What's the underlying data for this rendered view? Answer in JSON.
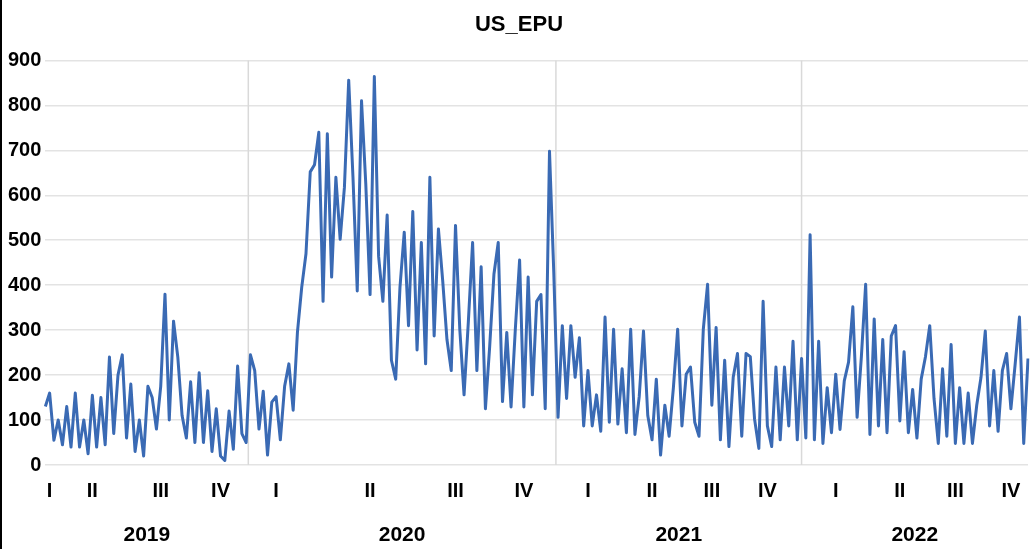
{
  "chart_data": {
    "type": "line",
    "title": "US_EPU",
    "categories": [
      null,
      "I",
      null,
      null,
      null,
      null,
      null,
      null,
      null,
      null,
      null,
      "II",
      null,
      null,
      null,
      null,
      null,
      null,
      null,
      null,
      null,
      null,
      null,
      null,
      null,
      null,
      null,
      "III",
      null,
      null,
      null,
      null,
      null,
      null,
      null,
      null,
      null,
      null,
      null,
      null,
      null,
      "IV",
      null,
      null,
      null,
      null,
      null,
      null,
      null,
      null,
      null,
      null,
      null,
      null,
      "I",
      null,
      null,
      null,
      null,
      null,
      null,
      null,
      null,
      null,
      null,
      null,
      null,
      null,
      null,
      null,
      null,
      null,
      null,
      null,
      null,
      null,
      "II",
      null,
      null,
      null,
      null,
      null,
      null,
      null,
      null,
      null,
      null,
      null,
      null,
      null,
      null,
      null,
      null,
      null,
      null,
      null,
      "III",
      null,
      null,
      null,
      null,
      null,
      null,
      null,
      null,
      null,
      null,
      null,
      null,
      null,
      null,
      null,
      "IV",
      null,
      null,
      null,
      null,
      null,
      null,
      null,
      null,
      null,
      null,
      null,
      null,
      null,
      null,
      "I",
      null,
      null,
      null,
      null,
      null,
      null,
      null,
      null,
      null,
      null,
      null,
      null,
      null,
      null,
      "II",
      null,
      null,
      null,
      null,
      null,
      null,
      null,
      null,
      null,
      null,
      null,
      null,
      null,
      "III",
      null,
      null,
      null,
      null,
      null,
      null,
      null,
      null,
      null,
      null,
      null,
      null,
      "IV",
      null,
      null,
      null,
      null,
      null,
      null,
      null,
      null,
      null,
      null,
      null,
      null,
      null,
      null,
      null,
      "I",
      null,
      null,
      null,
      null,
      null,
      null,
      null,
      null,
      null,
      null,
      null,
      null,
      null,
      null,
      "II",
      null,
      null,
      null,
      null,
      null,
      null,
      null,
      null,
      null,
      null,
      null,
      null,
      "III",
      null,
      null,
      null,
      null,
      null,
      null,
      null,
      null,
      null,
      null,
      null,
      null,
      "IV",
      null,
      null,
      null,
      null
    ],
    "series": [
      {
        "color": "#3a6ab4",
        "values": [
          130,
          160,
          55,
          100,
          45,
          130,
          40,
          160,
          40,
          100,
          25,
          155,
          40,
          150,
          45,
          240,
          70,
          200,
          245,
          60,
          180,
          30,
          100,
          20,
          175,
          150,
          80,
          175,
          380,
          100,
          320,
          240,
          110,
          60,
          185,
          50,
          205,
          50,
          165,
          30,
          125,
          20,
          10,
          120,
          35,
          220,
          70,
          50,
          245,
          210,
          80,
          164,
          22,
          140,
          152,
          56,
          175,
          225,
          122,
          295,
          395,
          470,
          652,
          668,
          740,
          364,
          737,
          418,
          640,
          502,
          618,
          856,
          640,
          387,
          810,
          625,
          379,
          864,
          464,
          364,
          556,
          233,
          191,
          395,
          518,
          310,
          564,
          256,
          495,
          225,
          640,
          287,
          525,
          410,
          279,
          210,
          533,
          302,
          156,
          318,
          495,
          210,
          441,
          125,
          264,
          425,
          495,
          141,
          295,
          129,
          302,
          456,
          129,
          418,
          156,
          364,
          379,
          125,
          698,
          429,
          106,
          310,
          148,
          310,
          195,
          283,
          87,
          210,
          87,
          156,
          75,
          329,
          95,
          302,
          91,
          214,
          72,
          302,
          68,
          152,
          298,
          110,
          56,
          191,
          22,
          133,
          64,
          172,
          302,
          87,
          202,
          218,
          95,
          64,
          302,
          402,
          133,
          306,
          56,
          233,
          41,
          195,
          248,
          64,
          248,
          241,
          102,
          37,
          364,
          87,
          41,
          218,
          56,
          218,
          87,
          275,
          56,
          237,
          60,
          512,
          56,
          275,
          48,
          172,
          72,
          202,
          79,
          187,
          229,
          352,
          106,
          241,
          402,
          68,
          325,
          87,
          279,
          72,
          287,
          310,
          98,
          252,
          72,
          168,
          60,
          191,
          241,
          310,
          148,
          48,
          214,
          64,
          268,
          48,
          172,
          48,
          160,
          48,
          133,
          195,
          298,
          87,
          210,
          75,
          210,
          248,
          125,
          225,
          329,
          48,
          237
        ]
      }
    ],
    "ylim": [
      0,
      900
    ],
    "yticks": [
      0,
      100,
      200,
      300,
      400,
      500,
      600,
      700,
      800,
      900
    ],
    "grid": true,
    "marker": "none",
    "line_style": "solid",
    "annotations": [
      "2019",
      "2020",
      "2021",
      "2022"
    ]
  }
}
